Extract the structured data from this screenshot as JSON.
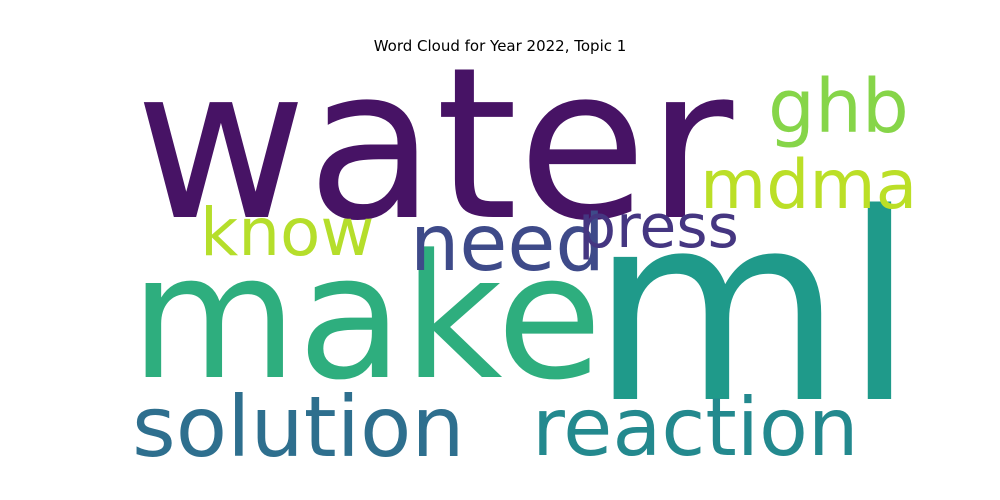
{
  "title": "Word Cloud for Year 2022, Topic 1",
  "words": [
    {
      "text": "water",
      "color": "#471365"
    },
    {
      "text": "make",
      "color": "#2eae7e"
    },
    {
      "text": "ml",
      "color": "#1f9a8a"
    },
    {
      "text": "solution",
      "color": "#2e6f8e"
    },
    {
      "text": "reaction",
      "color": "#23898e"
    },
    {
      "text": "need",
      "color": "#3e4a89"
    },
    {
      "text": "press",
      "color": "#453681"
    },
    {
      "text": "know",
      "color": "#b5de2b"
    },
    {
      "text": "mdma",
      "color": "#bbdf27"
    },
    {
      "text": "ghb",
      "color": "#86d549"
    }
  ]
}
